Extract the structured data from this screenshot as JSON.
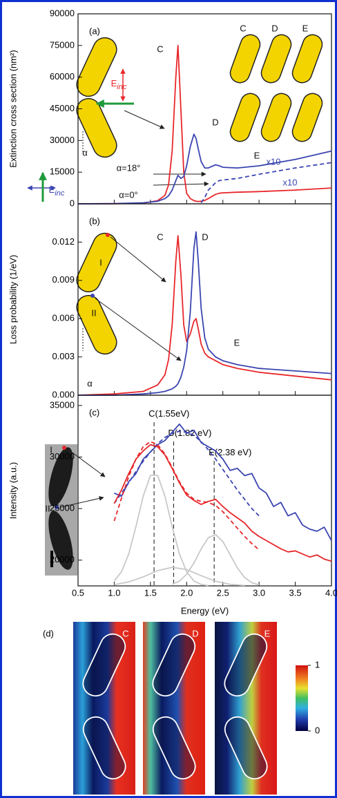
{
  "chart_data": [
    {
      "type": "line",
      "panel": "(a)",
      "ylabel": "Extinction cross section (nm²)",
      "ylim": [
        0,
        90000
      ],
      "yticks": [
        0,
        15000,
        30000,
        45000,
        60000,
        75000,
        90000
      ],
      "x": [
        0.5,
        1.0,
        1.4,
        1.6,
        1.7,
        1.75,
        1.8,
        1.85,
        1.88,
        1.92,
        1.96,
        2.0,
        2.05,
        2.1,
        2.13,
        2.16,
        2.2,
        2.25,
        2.3,
        2.4,
        2.45,
        2.5,
        2.7,
        3.0,
        3.5,
        4.0
      ],
      "series": [
        {
          "color": "#e8262a",
          "values": [
            0,
            50,
            300,
            1500,
            4000,
            9000,
            25000,
            60000,
            75000,
            45000,
            15000,
            5000,
            2500,
            1500,
            1200,
            1100,
            1200,
            1600,
            2500,
            4500,
            5000,
            5200,
            5500,
            5800,
            6500,
            7500
          ]
        },
        {
          "color": "#3a44b0",
          "values": [
            0,
            100,
            500,
            1200,
            2500,
            3800,
            6500,
            11000,
            13500,
            12000,
            13000,
            18000,
            27000,
            33000,
            31000,
            26000,
            20000,
            17000,
            17000,
            18500,
            18000,
            17300,
            17000,
            18000,
            21000,
            25000
          ]
        },
        {
          "color": "#3a44b0",
          "dashed": true,
          "values": [
            null,
            null,
            null,
            null,
            null,
            null,
            null,
            null,
            null,
            null,
            null,
            null,
            null,
            null,
            null,
            null,
            500,
            3000,
            6500,
            10000,
            11000,
            11300,
            12000,
            14000,
            17000,
            19500
          ]
        }
      ],
      "annotations": [
        {
          "text": "C"
        },
        {
          "text": "D"
        },
        {
          "text": "E"
        },
        {
          "text": "E",
          "sub": "inc",
          "color": "#e8262a"
        },
        {
          "text": "E",
          "sub": "inc",
          "color": "#3a44b0"
        },
        {
          "text": "α=18°"
        },
        {
          "text": "α=0°"
        },
        {
          "text": "x10",
          "color": "#3a44b0"
        },
        {
          "text": "x10",
          "color": "#3a44b0"
        },
        {
          "text": "α"
        },
        {
          "text": "C"
        },
        {
          "text": "D"
        },
        {
          "text": "E"
        }
      ]
    },
    {
      "type": "line",
      "panel": "(b)",
      "ylabel": "Loss probability (1/eV)",
      "ylim": [
        0,
        0.015
      ],
      "yticks": [
        {
          "value": 0,
          "label": "0.000"
        },
        0.003,
        0.006,
        0.009,
        0.012
      ],
      "x": [
        0.5,
        1.0,
        1.4,
        1.6,
        1.7,
        1.75,
        1.8,
        1.85,
        1.88,
        1.92,
        1.96,
        2.0,
        2.05,
        2.1,
        2.13,
        2.16,
        2.2,
        2.25,
        2.3,
        2.4,
        2.5,
        2.7,
        3.0,
        3.5,
        4.0
      ],
      "series": [
        {
          "color": "#e8262a",
          "values": [
            0,
            0.0001,
            0.0003,
            0.0008,
            0.0016,
            0.0028,
            0.0055,
            0.0105,
            0.0125,
            0.0095,
            0.0055,
            0.0042,
            0.0048,
            0.0058,
            0.006,
            0.0052,
            0.004,
            0.0033,
            0.003,
            0.0027,
            0.0024,
            0.0021,
            0.0018,
            0.0015,
            0.0012
          ]
        },
        {
          "color": "#3a44b0",
          "values": [
            0,
            0,
            0.0001,
            0.0002,
            0.0003,
            0.0004,
            0.0005,
            0.0007,
            0.0009,
            0.0014,
            0.0022,
            0.0035,
            0.0065,
            0.0115,
            0.0128,
            0.0105,
            0.0068,
            0.0045,
            0.0036,
            0.003,
            0.0027,
            0.0024,
            0.0021,
            0.0019,
            0.0017
          ]
        }
      ],
      "annotations": [
        {
          "text": "C"
        },
        {
          "text": "D"
        },
        {
          "text": "E"
        },
        {
          "text": "I"
        },
        {
          "text": "II"
        },
        {
          "text": "α"
        }
      ]
    },
    {
      "type": "line",
      "panel": "(c)",
      "ylabel": "Intensity (a.u.)",
      "xlabel": "Energy (eV)",
      "xlim": [
        0.5,
        4.0
      ],
      "xticks": [
        0.5,
        {
          "value": 1,
          "label": "1.0"
        },
        1.5,
        {
          "value": 2,
          "label": "2.0"
        },
        2.5,
        {
          "value": 3,
          "label": "3.0"
        },
        3.5,
        {
          "value": 4,
          "label": "4.0"
        }
      ],
      "ylim": [
        17500,
        36000
      ],
      "yticks": [
        20000,
        25000,
        30000,
        35000
      ],
      "series": [
        {
          "color": "#c8c8c8",
          "x": [
            1.0,
            1.1,
            1.2,
            1.3,
            1.4,
            1.5,
            1.6,
            1.7,
            1.8,
            1.9,
            2.0,
            2.1,
            2.2,
            2.3
          ],
          "values": [
            17980,
            18860,
            20600,
            23270,
            26220,
            28220,
            28220,
            26220,
            23270,
            20600,
            18860,
            17980,
            17640,
            17530
          ]
        },
        {
          "color": "#c8c8c8",
          "x": [
            1.0,
            1.2,
            1.4,
            1.6,
            1.8,
            2.0,
            2.2,
            2.4,
            2.6,
            2.8
          ],
          "values": [
            17620,
            17880,
            18380,
            18980,
            19300,
            19080,
            18490,
            17950,
            17650,
            17540
          ]
        },
        {
          "color": "#c8c8c8",
          "x": [
            1.8,
            1.9,
            2.0,
            2.1,
            2.2,
            2.3,
            2.4,
            2.5,
            2.6,
            2.7,
            2.8,
            2.9,
            3.0
          ],
          "values": [
            17660,
            17960,
            18630,
            19720,
            21080,
            22180,
            22480,
            21810,
            20530,
            19240,
            18310,
            17810,
            17600
          ]
        },
        {
          "color": "#3a44b0",
          "x": [
            1.0,
            1.1,
            1.2,
            1.3,
            1.4,
            1.5,
            1.6,
            1.7,
            1.8,
            1.9,
            2.0,
            2.1,
            2.2,
            2.3,
            2.4,
            2.5,
            2.6,
            2.7,
            2.8,
            2.9,
            3.0,
            3.1,
            3.2,
            3.3,
            3.4,
            3.5,
            3.6,
            3.7,
            3.8,
            3.9,
            4.0
          ],
          "values": [
            26500,
            26200,
            27600,
            28400,
            29800,
            30500,
            31200,
            31600,
            32400,
            33200,
            32300,
            32600,
            31400,
            31000,
            30600,
            29800,
            28700,
            28900,
            28200,
            28400,
            27000,
            26500,
            25200,
            25600,
            24300,
            24600,
            23400,
            23000,
            22800,
            23200,
            21900
          ]
        },
        {
          "color": "#3a44b0",
          "dashed": true,
          "x": [
            1.0,
            1.1,
            1.2,
            1.3,
            1.4,
            1.5,
            1.6,
            1.7,
            1.8,
            1.9,
            2.0,
            2.1,
            2.2,
            2.3,
            2.4,
            2.5,
            2.6,
            2.7,
            2.8,
            2.9,
            3.0
          ],
          "values": [
            25500,
            26500,
            27500,
            28600,
            29600,
            30500,
            31300,
            31900,
            32300,
            32500,
            32400,
            32100,
            31500,
            30700,
            29800,
            28800,
            27800,
            26800,
            25900,
            25000,
            24300
          ]
        },
        {
          "color": "#e8262a",
          "x": [
            1.0,
            1.1,
            1.2,
            1.3,
            1.4,
            1.5,
            1.6,
            1.7,
            1.8,
            1.9,
            2.0,
            2.1,
            2.2,
            2.3,
            2.4,
            2.5,
            2.6,
            2.7,
            2.8,
            2.9,
            3.0,
            3.1,
            3.2,
            3.3,
            3.4,
            3.5,
            3.6,
            3.7,
            3.8,
            3.9,
            4.0
          ],
          "values": [
            25500,
            26800,
            28400,
            29800,
            30600,
            31200,
            31000,
            30200,
            28900,
            27500,
            26300,
            25800,
            25400,
            25700,
            25900,
            25200,
            24600,
            24100,
            23600,
            22800,
            22300,
            21900,
            21500,
            21100,
            20800,
            20900,
            20600,
            20300,
            20500,
            20100,
            19900
          ]
        },
        {
          "color": "#e8262a",
          "dashed": true,
          "x": [
            1.0,
            1.1,
            1.2,
            1.3,
            1.4,
            1.5,
            1.6,
            1.7,
            1.8,
            1.9,
            2.0,
            2.1,
            2.2,
            2.3,
            2.4,
            2.5,
            2.6,
            2.7,
            2.8,
            2.9,
            3.0
          ],
          "values": [
            23800,
            26000,
            28100,
            29800,
            31000,
            31500,
            31200,
            30300,
            29000,
            27600,
            26500,
            25900,
            25700,
            25600,
            25300,
            24700,
            23900,
            23100,
            22300,
            21600,
            21000
          ]
        }
      ],
      "peaks": [
        {
          "name": "C",
          "energy": "(1.55eV)",
          "x": 1.55
        },
        {
          "name": "D",
          "energy": "(1.82 eV)",
          "x": 1.82
        },
        {
          "name": "E",
          "energy": "(2.38 eV)",
          "x": 2.38
        }
      ],
      "annotations": [
        {
          "text": "I"
        },
        {
          "text": "II"
        }
      ]
    }
  ],
  "panel_d": {
    "label": "(d)",
    "maps": [
      "C",
      "D",
      "E"
    ],
    "colorbar": {
      "ticks": [
        0,
        1
      ]
    }
  }
}
